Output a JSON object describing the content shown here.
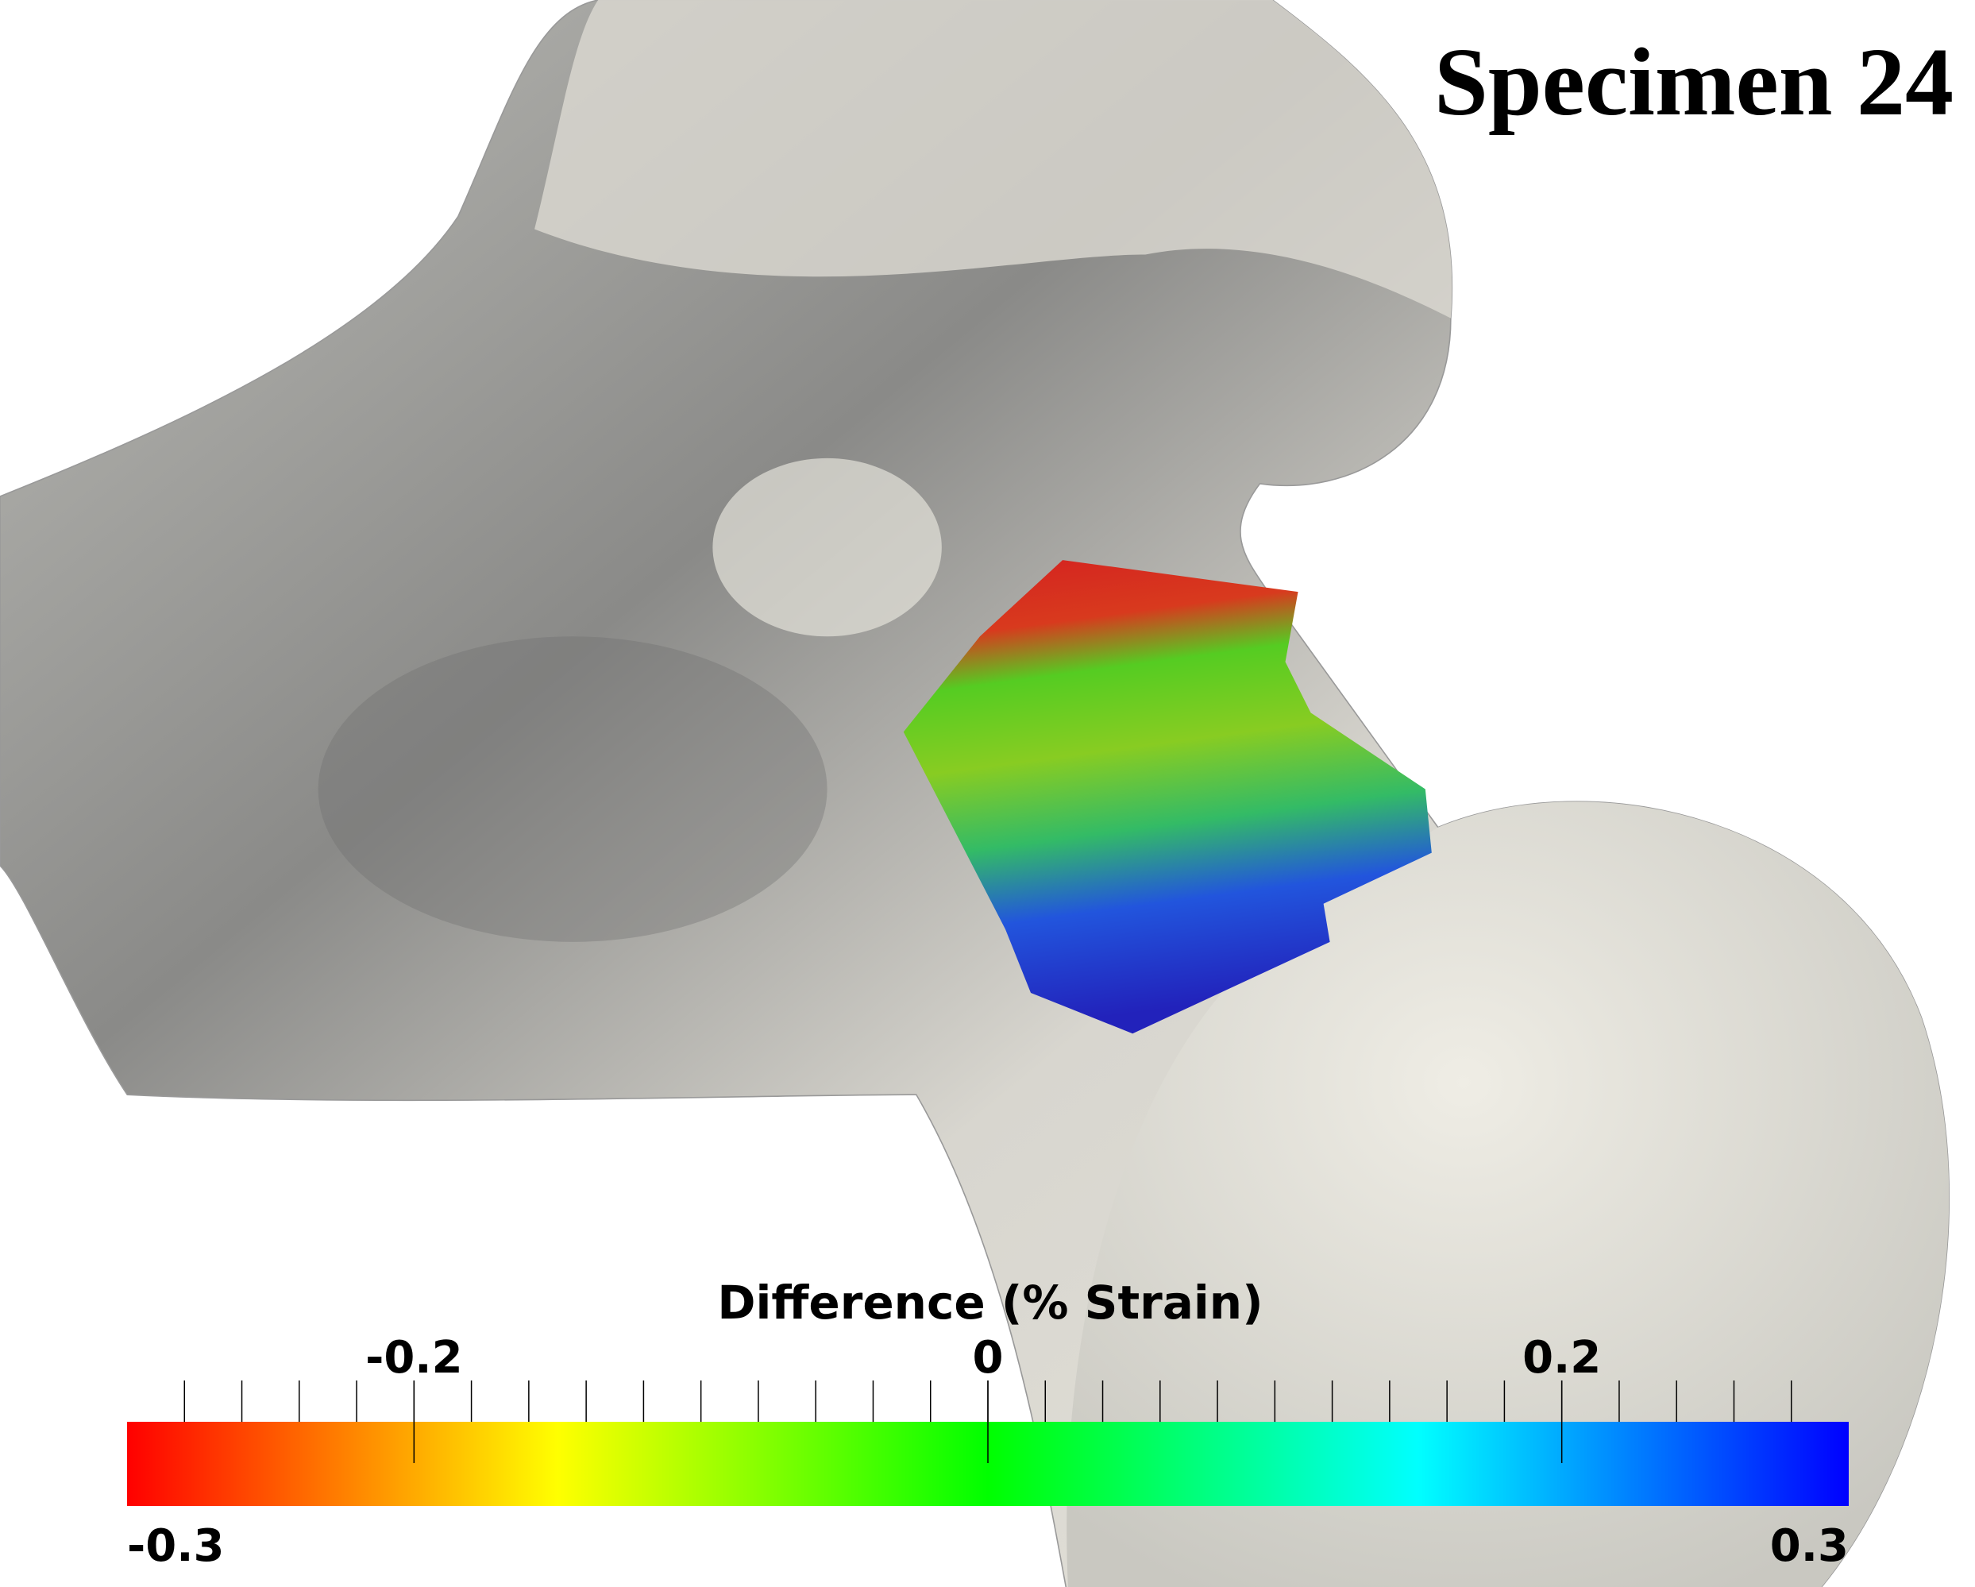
{
  "title": "Specimen 24",
  "colorbar": {
    "title": "Difference (% Strain)",
    "range": [
      -0.3,
      0.3
    ],
    "ticks": [
      -0.2,
      0,
      0.2
    ],
    "minor_ticks": [
      -0.28,
      -0.26,
      -0.24,
      -0.22,
      -0.2,
      -0.18,
      -0.16,
      -0.14,
      -0.12,
      -0.1,
      -0.08,
      -0.06,
      -0.04,
      -0.02,
      0,
      0.02,
      0.04,
      0.06,
      0.08,
      0.1,
      0.12,
      0.14,
      0.16,
      0.18,
      0.2,
      0.22,
      0.24,
      0.26,
      0.28
    ],
    "colormap": [
      "#ff0000",
      "#ffff00",
      "#00ff00",
      "#00ffff",
      "#0000ff"
    ]
  }
}
